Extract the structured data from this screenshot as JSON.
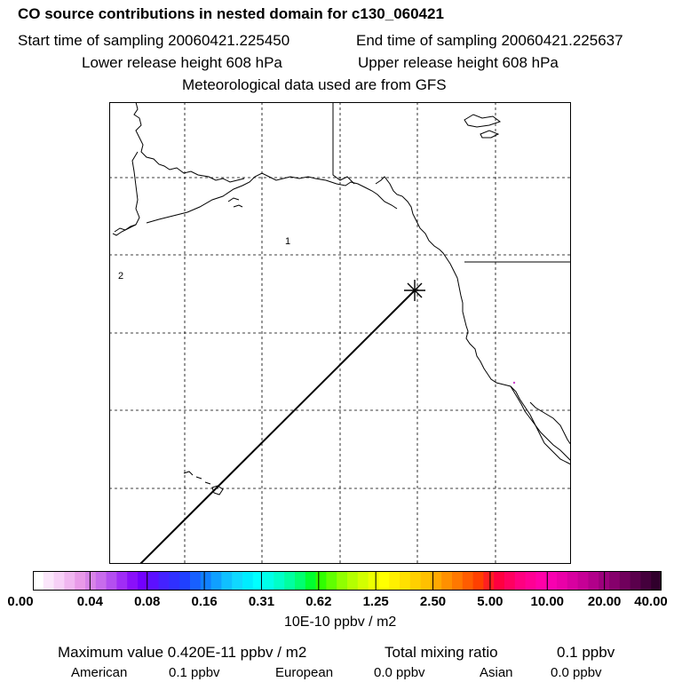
{
  "header": {
    "title": "CO  source contributions in nested domain for c130_060421",
    "start_label": "Start time of sampling 20060421.225450",
    "end_label": "End time of sampling 20060421.225637",
    "lower_label": "Lower release height  608 hPa",
    "upper_label": "Upper release height  608 hPa",
    "met_label": "Meteorological data used are from GFS"
  },
  "map": {
    "region_labels": [
      "1",
      "2"
    ],
    "release_marker": "asterisk"
  },
  "legend": {
    "ticks": [
      "0.00",
      "0.04",
      "0.08",
      "0.16",
      "0.31",
      "0.62",
      "1.25",
      "2.50",
      "5.00",
      "10.00",
      "20.00",
      "40.00"
    ],
    "units": "10E-10 ppbv / m2",
    "colors": [
      "#ffffff",
      "#fbe6fb",
      "#f7d0f7",
      "#f0b6f0",
      "#e89ae8",
      "#d884e8",
      "#c86cec",
      "#b44ff0",
      "#a02df6",
      "#8a10fa",
      "#7200ff",
      "#5c10ff",
      "#4422ff",
      "#3030ff",
      "#2040ff",
      "#1860ff",
      "#1080ff",
      "#10a0ff",
      "#10c0ff",
      "#10d8ff",
      "#00ecff",
      "#00ffff",
      "#00ffe8",
      "#00ffc8",
      "#00ffa0",
      "#00ff70",
      "#00ff30",
      "#30ff00",
      "#60ff00",
      "#90ff00",
      "#b4ff00",
      "#d2ff00",
      "#ecff00",
      "#ffff00",
      "#fff000",
      "#ffe000",
      "#ffd000",
      "#ffc000",
      "#ffa800",
      "#ff9000",
      "#ff7800",
      "#ff5c00",
      "#ff4000",
      "#ff2020",
      "#ff0040",
      "#ff0060",
      "#ff0080",
      "#ff0094",
      "#ff00a8",
      "#f800b0",
      "#ea00a8",
      "#d800a0",
      "#c60096",
      "#b2008a",
      "#9c007c",
      "#86006c",
      "#70005c",
      "#5a004c",
      "#44003c",
      "#30002c"
    ]
  },
  "footer": {
    "max_label": "Maximum value  0.420E-11 ppbv / m2",
    "mixing_label": "Total mixing ratio",
    "mixing_value": "0.1 ppbv",
    "regions": [
      {
        "name": "American",
        "value": "0.1 ppbv"
      },
      {
        "name": "European",
        "value": "0.0 ppbv"
      },
      {
        "name": "Asian",
        "value": "0.0 ppbv"
      }
    ]
  }
}
